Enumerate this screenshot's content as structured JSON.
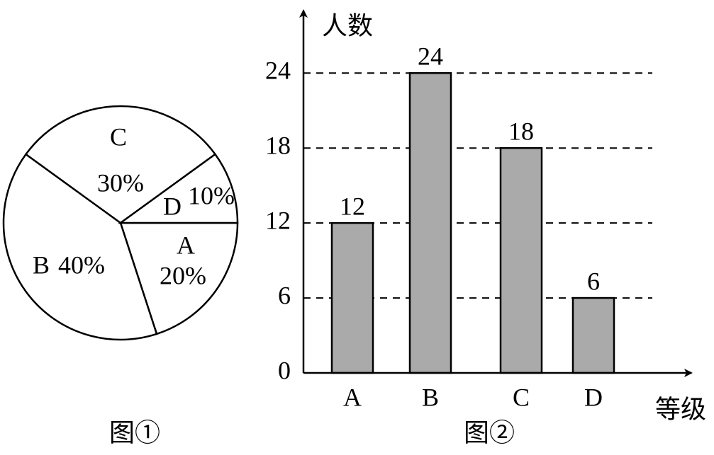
{
  "chart_data": [
    {
      "type": "pie",
      "caption": "图①",
      "categories": [
        "A",
        "B",
        "C",
        "D"
      ],
      "values": [
        20,
        40,
        30,
        10
      ],
      "value_labels": [
        "20%",
        "40%",
        "30%",
        "10%"
      ],
      "color": "#ffffff"
    },
    {
      "type": "bar",
      "caption": "图②",
      "y_label": "人数",
      "x_label": "等级",
      "categories": [
        "A",
        "B",
        "C",
        "D"
      ],
      "values": [
        12,
        24,
        18,
        6
      ],
      "color": "#aaaaaa",
      "ylim": [
        0,
        29
      ],
      "yticks": [
        0,
        6,
        12,
        18,
        24
      ],
      "grid": true
    }
  ]
}
